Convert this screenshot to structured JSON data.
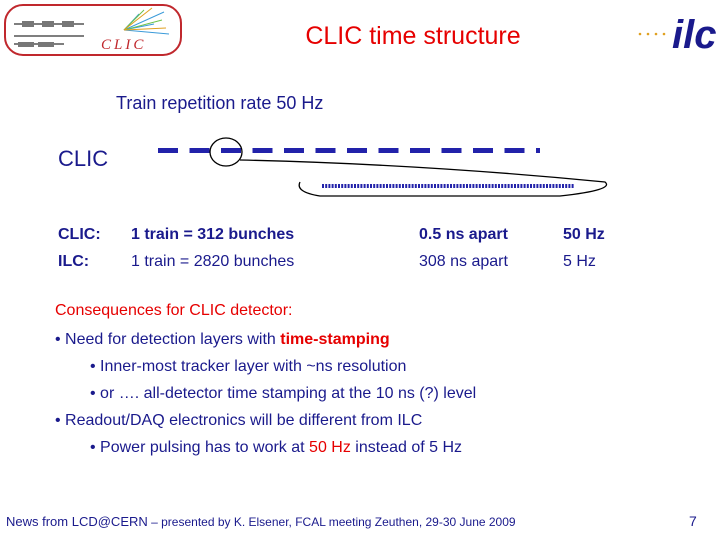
{
  "header": {
    "title": "CLIC time structure",
    "clic_logo_text": "CLIC",
    "ilc_logo_text": "ilc"
  },
  "diagram": {
    "train_rate_label": "Train repetition rate 50 Hz",
    "machine_label": "CLIC",
    "train_count": 12
  },
  "comparison": [
    {
      "machine": "CLIC:",
      "train": "1 train = 312 bunches",
      "spacing": "0.5 ns apart",
      "rate": "50 Hz"
    },
    {
      "machine": "ILC:",
      "train": "1 train = 2820 bunches",
      "spacing": "308 ns apart",
      "rate": "5 Hz"
    }
  ],
  "consequences": {
    "heading": "Consequences for CLIC detector:",
    "b1_pre": "• Need for detection layers with ",
    "b1_hl": "time-stamping",
    "b2": "• Inner-most tracker layer with ~ns resolution",
    "b3": "• or …. all-detector time stamping at the 10 ns (?) level",
    "b4": "• Readout/DAQ electronics will be different from ILC",
    "b5_pre": "• Power pulsing has to work at ",
    "b5_hl": "50 Hz",
    "b5_post": " instead of 5 Hz"
  },
  "footer": {
    "part1": "News from LCD@CERN",
    "part2": " – presented by K. Elsener, FCAL meeting Zeuthen, 29-30 June 2009",
    "page_number": "7"
  },
  "colors": {
    "title_red": "#e60000",
    "text_blue": "#1a1a8c",
    "train_blue": "#2222aa"
  }
}
